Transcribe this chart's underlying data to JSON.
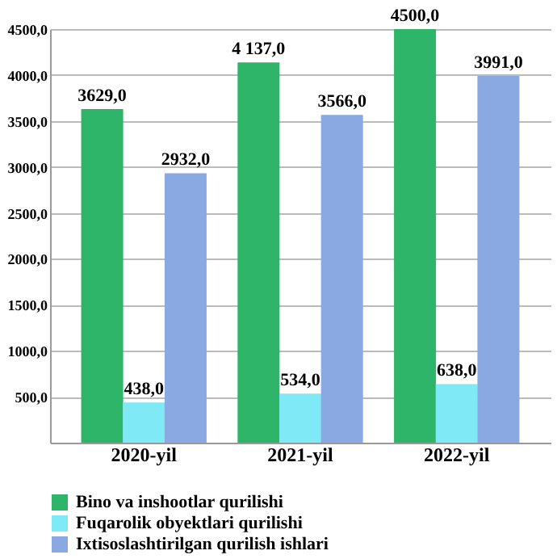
{
  "chart_data": {
    "type": "bar",
    "categories": [
      "2020-yil",
      "2021-yil",
      "2022-yil"
    ],
    "series": [
      {
        "name": "Bino va inshootlar qurilishi",
        "color": "#2fb56a",
        "values": [
          3629.0,
          4137.0,
          4500.0
        ],
        "value_labels": [
          "3629,0",
          "4 137,0",
          "4500,0"
        ]
      },
      {
        "name": "Fuqarolik obyektlari qurilishi",
        "color": "#7fe9f6",
        "values": [
          438.0,
          534.0,
          638.0
        ],
        "value_labels": [
          "438,0",
          "534,0",
          "638,0"
        ]
      },
      {
        "name": "Ixtisoslashtirilgan qurilish ishlari",
        "color": "#8aa9e2",
        "values": [
          2932.0,
          3566.0,
          3991.0
        ],
        "value_labels": [
          "2932,0",
          "3566,0",
          "3991,0"
        ]
      }
    ],
    "ylim": [
      0,
      4500
    ],
    "yticks": [
      {
        "value": 0,
        "label": null
      },
      {
        "value": 500,
        "label": "500,0"
      },
      {
        "value": 1000,
        "label": "1000,0"
      },
      {
        "value": 1500,
        "label": "1500,0"
      },
      {
        "value": 2000,
        "label": "2000,0"
      },
      {
        "value": 2500,
        "label": "2500,0"
      },
      {
        "value": 3000,
        "label": "3000,0"
      },
      {
        "value": 3500,
        "label": "3500,0"
      },
      {
        "value": 4000,
        "label": "4000,0"
      },
      {
        "value": 4500,
        "label": "4500,0"
      }
    ],
    "grid": "y",
    "legend": "bottom"
  }
}
